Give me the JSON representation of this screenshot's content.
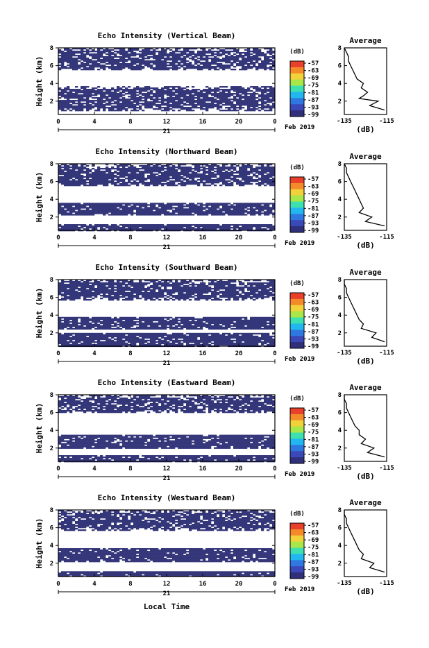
{
  "panels": [
    {
      "title": "Echo Intensity (Vertical Beam)",
      "avg_title": "Average"
    },
    {
      "title": "Echo Intensity (Northward Beam)",
      "avg_title": "Average"
    },
    {
      "title": "Echo Intensity (Southward Beam)",
      "avg_title": "Average"
    },
    {
      "title": "Echo Intensity (Eastward Beam)",
      "avg_title": "Average"
    },
    {
      "title": "Echo Intensity (Westward Beam)",
      "avg_title": "Average"
    }
  ],
  "ylabel": "Height (km)",
  "xlabel": "Local Time",
  "day_label": "21",
  "month_label": "Feb 2019",
  "colorbar_unit": "(dB)",
  "colorbar_ticks": [
    "-57",
    "-63",
    "-69",
    "-75",
    "-81",
    "-87",
    "-93",
    "-99"
  ],
  "colorbar_colors": [
    "#2f2f7a",
    "#3a48b8",
    "#2f78e0",
    "#22b7ee",
    "#3ee0b0",
    "#a8e64a",
    "#f2d23a",
    "#f58a2a",
    "#e8402a"
  ],
  "plot_color": "#34367a",
  "avg_xlabel": "(dB)",
  "x_ticks": [
    "0",
    "4",
    "8",
    "12",
    "16",
    "20",
    "0"
  ],
  "y_ticks": [
    "2",
    "4",
    "6",
    "8"
  ],
  "avg_x_ticks": [
    "-135",
    "-115"
  ],
  "chart_data": [
    {
      "type": "heatmap",
      "title": "Echo Intensity (Vertical Beam)",
      "x_range": [
        0,
        24
      ],
      "ylim": [
        0.5,
        8
      ],
      "ylabel": "Height (km)",
      "colorbar_range": [
        -99,
        -57
      ],
      "shaded_bands_km": [
        [
          1,
          3.7
        ],
        [
          5.5,
          8
        ]
      ],
      "average_profile": {
        "xlim": [
          -135,
          -115
        ],
        "ylim": [
          0.5,
          8
        ],
        "height_km": [
          1,
          1.5,
          2,
          2.3,
          2.6,
          3,
          3.5,
          4,
          4.5,
          5,
          5.5,
          6,
          6.5,
          7,
          7.5,
          8
        ],
        "db": [
          -116,
          -123,
          -119,
          -128,
          -126,
          -124,
          -127,
          -126,
          -129,
          -130,
          -131,
          -132,
          -133,
          -133,
          -134,
          -135
        ]
      }
    },
    {
      "type": "heatmap",
      "title": "Echo Intensity (Northward Beam)",
      "x_range": [
        0,
        24
      ],
      "ylim": [
        0.5,
        8
      ],
      "ylabel": "Height (km)",
      "colorbar_range": [
        -99,
        -57
      ],
      "shaded_bands_km": [
        [
          0.5,
          1.2
        ],
        [
          2.3,
          3.6
        ],
        [
          5.5,
          8
        ]
      ],
      "average_profile": {
        "xlim": [
          -135,
          -115
        ],
        "ylim": [
          0.5,
          8
        ],
        "height_km": [
          1,
          1.5,
          2,
          2.5,
          3,
          3.5,
          4,
          4.5,
          5,
          5.5,
          6,
          6.5,
          7,
          7.5,
          8
        ],
        "db": [
          -116,
          -125,
          -122,
          -128,
          -126,
          -127,
          -128,
          -129,
          -130,
          -131,
          -132,
          -133,
          -134,
          -134,
          -135
        ]
      }
    },
    {
      "type": "heatmap",
      "title": "Echo Intensity (Southward Beam)",
      "x_range": [
        0,
        24
      ],
      "ylim": [
        0.5,
        8
      ],
      "ylabel": "Height (km)",
      "colorbar_range": [
        -99,
        -57
      ],
      "shaded_bands_km": [
        [
          0.5,
          2
        ],
        [
          2.5,
          3.8
        ],
        [
          5.8,
          8
        ]
      ],
      "average_profile": {
        "xlim": [
          -135,
          -115
        ],
        "ylim": [
          0.5,
          8
        ],
        "height_km": [
          1,
          1.5,
          2,
          2.5,
          3,
          3.5,
          4,
          4.5,
          5,
          5.5,
          6,
          6.5,
          7,
          7.5,
          8
        ],
        "db": [
          -116,
          -122,
          -120,
          -127,
          -126,
          -128,
          -129,
          -130,
          -131,
          -132,
          -133,
          -134,
          -134,
          -135,
          -135
        ]
      }
    },
    {
      "type": "heatmap",
      "title": "Echo Intensity (Eastward Beam)",
      "x_range": [
        0,
        24
      ],
      "ylim": [
        0.5,
        8
      ],
      "ylabel": "Height (km)",
      "colorbar_range": [
        -99,
        -57
      ],
      "shaded_bands_km": [
        [
          0.5,
          1.2
        ],
        [
          2,
          3.5
        ],
        [
          6,
          8
        ]
      ],
      "average_profile": {
        "xlim": [
          -135,
          -115
        ],
        "ylim": [
          0.5,
          8
        ],
        "height_km": [
          1,
          1.5,
          2,
          2.5,
          3,
          3.5,
          4,
          4.5,
          5,
          5.5,
          6,
          6.5,
          7,
          7.5,
          8
        ],
        "db": [
          -116,
          -124,
          -121,
          -127,
          -125,
          -128,
          -128,
          -130,
          -131,
          -132,
          -133,
          -134,
          -134,
          -135,
          -135
        ]
      }
    },
    {
      "type": "heatmap",
      "title": "Echo Intensity (Westward Beam)",
      "x_range": [
        0,
        24
      ],
      "ylim": [
        0.5,
        8
      ],
      "ylabel": "Height (km)",
      "colorbar_range": [
        -99,
        -57
      ],
      "shaded_bands_km": [
        [
          0.5,
          1.1
        ],
        [
          2.2,
          3.7
        ],
        [
          5.8,
          8
        ]
      ],
      "average_profile": {
        "xlim": [
          -135,
          -115
        ],
        "ylim": [
          0.5,
          8
        ],
        "height_km": [
          1,
          1.5,
          2,
          2.5,
          3,
          3.5,
          4,
          4.5,
          5,
          5.5,
          6,
          6.5,
          7,
          7.5,
          8
        ],
        "db": [
          -116,
          -123,
          -121,
          -127,
          -126,
          -128,
          -129,
          -130,
          -131,
          -132,
          -133,
          -134,
          -134,
          -135,
          -135
        ]
      }
    }
  ]
}
